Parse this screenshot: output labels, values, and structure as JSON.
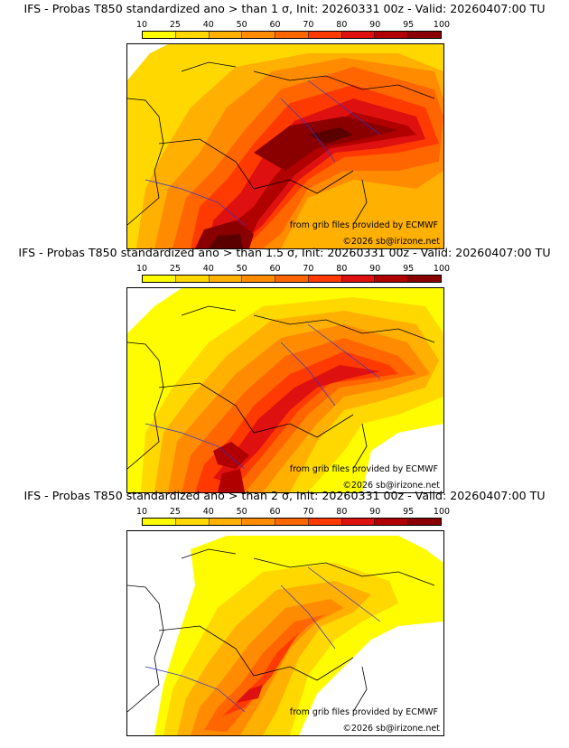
{
  "colorbar": {
    "ticks": [
      "10",
      "25",
      "40",
      "50",
      "60",
      "70",
      "80",
      "90",
      "95",
      "100"
    ],
    "colors": [
      "#fffc00",
      "#ffd800",
      "#ffb000",
      "#ff8c00",
      "#ff6600",
      "#ff3a00",
      "#de1010",
      "#b00000",
      "#8a0000",
      "#5a0000"
    ]
  },
  "panels": [
    {
      "title": "IFS - Probas T850  standardized ano > than 1 σ, Init: 20260331 00z - Valid: 20260407:00 TU",
      "credit_source": "from grib files provided by ECMWF",
      "credit_copyright": "©2026 sb@irizone.net"
    },
    {
      "title": "IFS - Probas T850  standardized ano > than 1.5 σ, Init: 20260331 00z - Valid: 20260407:00 TU",
      "credit_source": "from grib files provided by ECMWF",
      "credit_copyright": "©2026 sb@irizone.net"
    },
    {
      "title": "IFS - Probas T850  standardized ano > than 2 σ, Init: 20260331 00z - Valid: 20260407:00 TU",
      "credit_source": "from grib files provided by ECMWF",
      "credit_copyright": "©2026 sb@irizone.net"
    }
  ]
}
